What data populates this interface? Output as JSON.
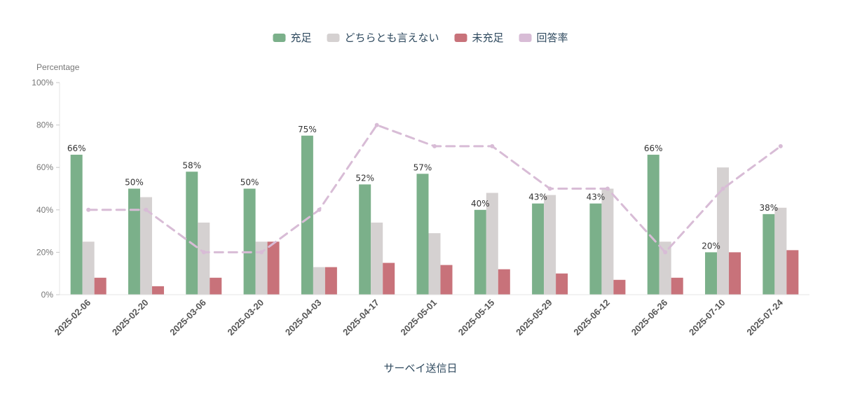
{
  "chart_data": {
    "type": "bar",
    "xlabel": "サーベイ送信日",
    "ylabel": "Percentage",
    "ylim": [
      0,
      100
    ],
    "yticks": [
      "0%",
      "20%",
      "40%",
      "60%",
      "80%",
      "100%"
    ],
    "legend_position": "top-center",
    "grid": false,
    "categories": [
      "2025-02-06",
      "2025-02-20",
      "2025-03-06",
      "2025-03-20",
      "2025-04-03",
      "2025-04-17",
      "2025-05-01",
      "2025-05-15",
      "2025-05-29",
      "2025-06-12",
      "2025-06-26",
      "2025-07-10",
      "2025-07-24"
    ],
    "series": [
      {
        "name": "充足",
        "kind": "bar",
        "color": "#7bb08a",
        "values": [
          66,
          50,
          58,
          50,
          75,
          52,
          57,
          40,
          43,
          43,
          66,
          20,
          38
        ],
        "labels": [
          "66%",
          "50%",
          "58%",
          "50%",
          "75%",
          "52%",
          "57%",
          "40%",
          "43%",
          "43%",
          "66%",
          "20%",
          "38%"
        ]
      },
      {
        "name": "どちらとも言えない",
        "kind": "bar",
        "color": "#d5d1d1",
        "values": [
          25,
          46,
          34,
          25,
          13,
          34,
          29,
          48,
          47,
          50,
          25,
          60,
          41
        ]
      },
      {
        "name": "未充足",
        "kind": "bar",
        "color": "#c8727a",
        "values": [
          8,
          4,
          8,
          25,
          13,
          15,
          14,
          12,
          10,
          7,
          8,
          20,
          21
        ]
      },
      {
        "name": "回答率",
        "kind": "line",
        "style": "dashed",
        "color": "#d8bcd6",
        "values": [
          40,
          40,
          20,
          20,
          40,
          80,
          70,
          70,
          50,
          50,
          20,
          50,
          70
        ]
      }
    ]
  }
}
